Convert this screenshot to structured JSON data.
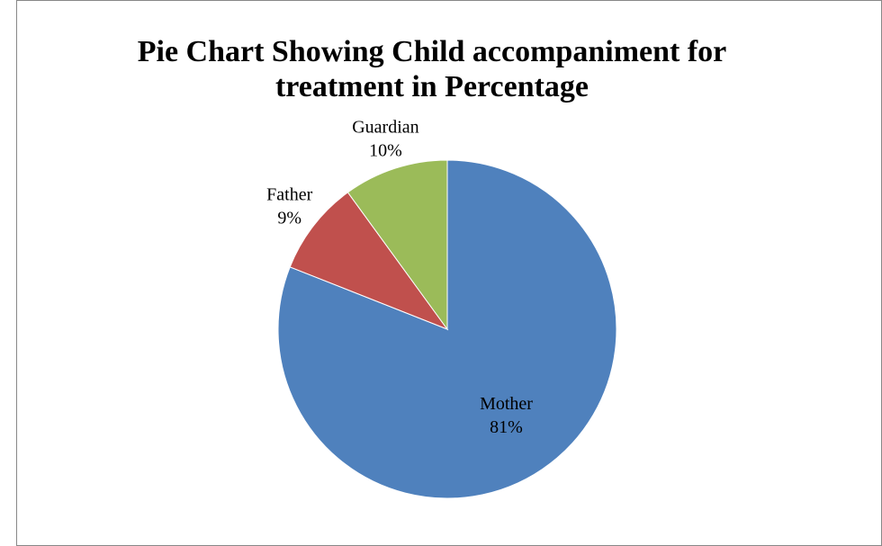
{
  "chart_data": {
    "type": "pie",
    "title": "Pie Chart Showing Child accompaniment for treatment in Percentage",
    "categories": [
      "Mother",
      "Father",
      "Guardian"
    ],
    "values": [
      81,
      9,
      10
    ],
    "value_labels": [
      "81%",
      "9%",
      "10%"
    ],
    "colors": [
      "#4f81bd",
      "#c0504d",
      "#9bbb59"
    ]
  }
}
